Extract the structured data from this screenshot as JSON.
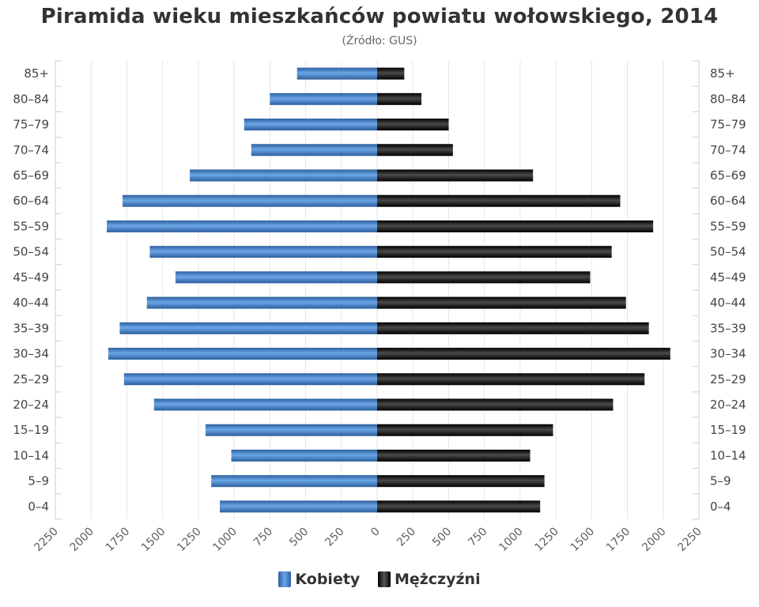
{
  "chart_data": {
    "type": "bar",
    "orientation": "horizontal",
    "title": "Piramida wieku mieszkańców powiatu wołowskiego, 2014",
    "subtitle": "(Źródło: GUS)",
    "categories": [
      "85+",
      "80–84",
      "75–79",
      "70–74",
      "65–69",
      "60–64",
      "55–59",
      "50–54",
      "45–49",
      "40–44",
      "35–39",
      "30–34",
      "25–29",
      "20–24",
      "15–19",
      "10–14",
      "5–9",
      "0–4"
    ],
    "series": [
      {
        "name": "Kobiety",
        "color": "#3f7dc5",
        "values": [
          560,
          750,
          930,
          880,
          1310,
          1780,
          1890,
          1590,
          1410,
          1610,
          1800,
          1880,
          1770,
          1560,
          1200,
          1020,
          1160,
          1100
        ]
      },
      {
        "name": "Mężczyźni",
        "color": "#1a1a1a",
        "values": [
          190,
          310,
          500,
          530,
          1090,
          1700,
          1930,
          1640,
          1490,
          1740,
          1900,
          2050,
          1870,
          1650,
          1230,
          1070,
          1170,
          1140
        ]
      }
    ],
    "xlim": [
      -2250,
      2250
    ],
    "tick_labels": [
      "2250",
      "2000",
      "1750",
      "1500",
      "1250",
      "1000",
      "750",
      "500",
      "250",
      "0",
      "250",
      "500",
      "750",
      "1000",
      "1250",
      "1500",
      "1750",
      "2000",
      "2250"
    ],
    "grid": true,
    "legend_position": "bottom"
  }
}
